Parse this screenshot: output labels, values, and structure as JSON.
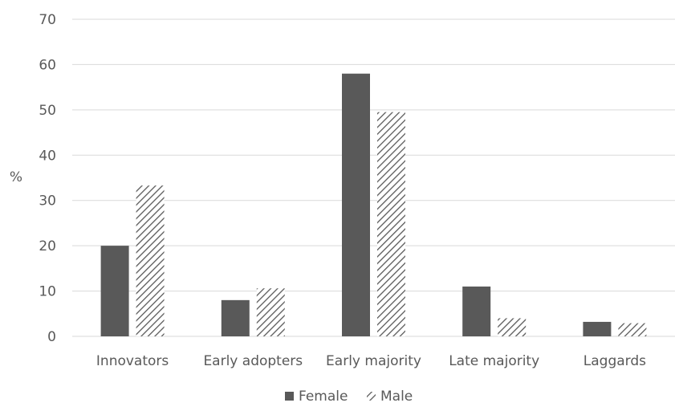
{
  "chart_data": {
    "type": "bar",
    "categories": [
      "Innovators",
      "Early adopters",
      "Early majority",
      "Late majority",
      "Laggards"
    ],
    "series": [
      {
        "name": "Female",
        "values": [
          20,
          8,
          58,
          11,
          3.2
        ],
        "color": "#595959",
        "pattern": "solid"
      },
      {
        "name": "Male",
        "values": [
          33.3,
          10.6,
          49.5,
          4,
          2.9
        ],
        "color": "#595959",
        "pattern": "diagonal-hatch"
      }
    ],
    "ylabel": "%",
    "ylim": [
      0,
      70
    ],
    "yticks": [
      0,
      10,
      20,
      30,
      40,
      50,
      60,
      70
    ],
    "grid": true,
    "legend_position": "bottom"
  }
}
